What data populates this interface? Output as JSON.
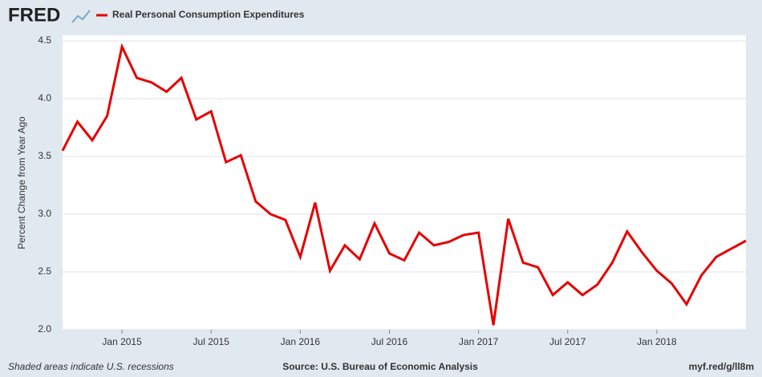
{
  "brand": "FRED",
  "footer": {
    "note": "Shaded areas indicate U.S. recessions",
    "source": "Source: U.S. Bureau of Economic Analysis",
    "link": "myf.red/g/ll8m"
  },
  "chart_data": {
    "type": "line",
    "ylabel": "Percent Change from Year Ago",
    "x": [
      "Sep 2014",
      "Oct 2014",
      "Nov 2014",
      "Dec 2014",
      "Jan 2015",
      "Feb 2015",
      "Mar 2015",
      "Apr 2015",
      "May 2015",
      "Jun 2015",
      "Jul 2015",
      "Aug 2015",
      "Sep 2015",
      "Oct 2015",
      "Nov 2015",
      "Dec 2015",
      "Jan 2016",
      "Feb 2016",
      "Mar 2016",
      "Apr 2016",
      "May 2016",
      "Jun 2016",
      "Jul 2016",
      "Aug 2016",
      "Sep 2016",
      "Oct 2016",
      "Nov 2016",
      "Dec 2016",
      "Jan 2017",
      "Feb 2017",
      "Mar 2017",
      "Apr 2017",
      "May 2017",
      "Jun 2017",
      "Jul 2017",
      "Aug 2017",
      "Sep 2017",
      "Oct 2017",
      "Nov 2017",
      "Dec 2017",
      "Jan 2018",
      "Feb 2018",
      "Mar 2018",
      "Apr 2018",
      "May 2018",
      "Jun 2018",
      "Jul 2018"
    ],
    "series": [
      {
        "name": "Real Personal Consumption Expenditures",
        "color": "#e60000",
        "values": [
          3.55,
          3.8,
          3.64,
          3.85,
          4.45,
          4.18,
          4.14,
          4.06,
          4.18,
          3.82,
          3.89,
          3.45,
          3.51,
          3.11,
          3.0,
          2.95,
          2.63,
          3.1,
          2.51,
          2.73,
          2.61,
          2.92,
          2.66,
          2.6,
          2.84,
          2.73,
          2.76,
          2.82,
          2.84,
          2.04,
          2.96,
          2.58,
          2.54,
          2.3,
          2.41,
          2.3,
          2.39,
          2.58,
          2.85,
          2.67,
          2.51,
          2.4,
          2.22,
          2.47,
          2.63,
          2.7,
          2.77
        ]
      }
    ],
    "xticks": [
      "Jan 2015",
      "Jul 2015",
      "Jan 2016",
      "Jul 2016",
      "Jan 2017",
      "Jul 2017",
      "Jan 2018"
    ],
    "ylim": [
      2.0,
      4.5
    ],
    "yticks": [
      {
        "value": 2.0,
        "label": "2.0"
      },
      {
        "value": 2.5,
        "label": "2.5"
      },
      {
        "value": 3.0,
        "label": "3.0"
      },
      {
        "value": 3.5,
        "label": "3.5"
      },
      {
        "value": 4.0,
        "label": "4.0"
      },
      {
        "value": 4.5,
        "label": "4.5"
      }
    ],
    "grid": true
  }
}
